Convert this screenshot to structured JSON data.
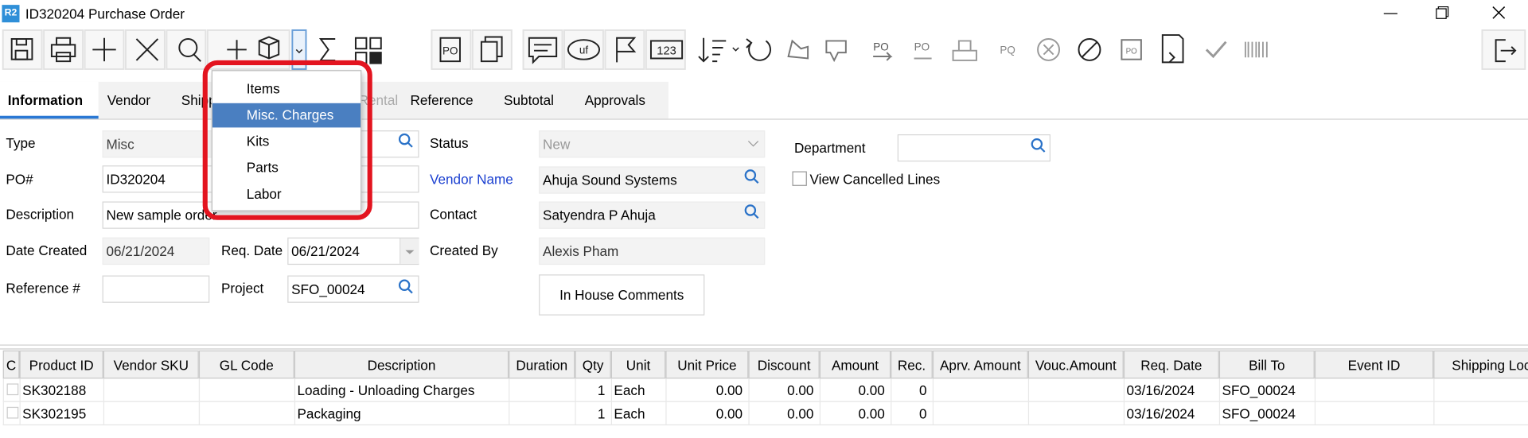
{
  "window": {
    "badge": "R2",
    "title": "ID320204 Purchase Order"
  },
  "toolbar": {
    "po": "PO",
    "uf": "uf",
    "numbers": "123",
    "po2": "PO",
    "po3": "PO",
    "po4": "PQ",
    "po5": "PO"
  },
  "tabs": [
    "Information",
    "Vendor",
    "Shipping",
    "Rental",
    "Reference",
    "Subtotal",
    "Approvals"
  ],
  "menu": {
    "items": [
      "Items",
      "Misc. Charges",
      "Kits",
      "Parts",
      "Labor"
    ]
  },
  "form": {
    "type": {
      "label": "Type",
      "value": "Misc"
    },
    "po": {
      "label": "PO#",
      "value": "ID320204"
    },
    "description": {
      "label": "Description",
      "value": "New sample order"
    },
    "date_created": {
      "label": "Date Created",
      "value": "06/21/2024"
    },
    "req_date": {
      "label": "Req. Date",
      "value": "06/21/2024"
    },
    "reference": {
      "label": "Reference #"
    },
    "project": {
      "label": "Project",
      "value": "SFO_00024"
    },
    "status": {
      "label": "Status",
      "value": "New"
    },
    "vendor_name": {
      "label": "Vendor Name",
      "value": "Ahuja Sound Systems"
    },
    "contact": {
      "label": "Contact",
      "value": "Satyendra P Ahuja"
    },
    "created_by": {
      "label": "Created By",
      "value": "Alexis Pham"
    },
    "comments_button": "In House Comments",
    "department": {
      "label": "Department"
    },
    "view_cancelled": "View Cancelled Lines"
  },
  "table": {
    "columns": [
      "C",
      "Product ID",
      "Vendor SKU",
      "GL Code",
      "Description",
      "Duration",
      "Qty",
      "Unit",
      "Unit Price",
      "Discount",
      "Amount",
      "Rec.",
      "Aprv. Amount",
      "Vouc.Amount",
      "Req. Date",
      "Bill To",
      "Event ID",
      "Shipping Location"
    ],
    "rows": [
      {
        "product_id": "SK302188",
        "description": "Loading - Unloading Charges",
        "qty": 1,
        "unit": "Each",
        "unit_price": "0.00",
        "discount": "0.00",
        "amount": "0.00",
        "rec": 0,
        "req_date": "03/16/2024",
        "bill_to": "SFO_00024"
      },
      {
        "product_id": "SK302195",
        "description": "Packaging",
        "qty": 1,
        "unit": "Each",
        "unit_price": "0.00",
        "discount": "0.00",
        "amount": "0.00",
        "rec": 0,
        "req_date": "03/16/2024",
        "bill_to": "SFO_00024"
      }
    ]
  }
}
